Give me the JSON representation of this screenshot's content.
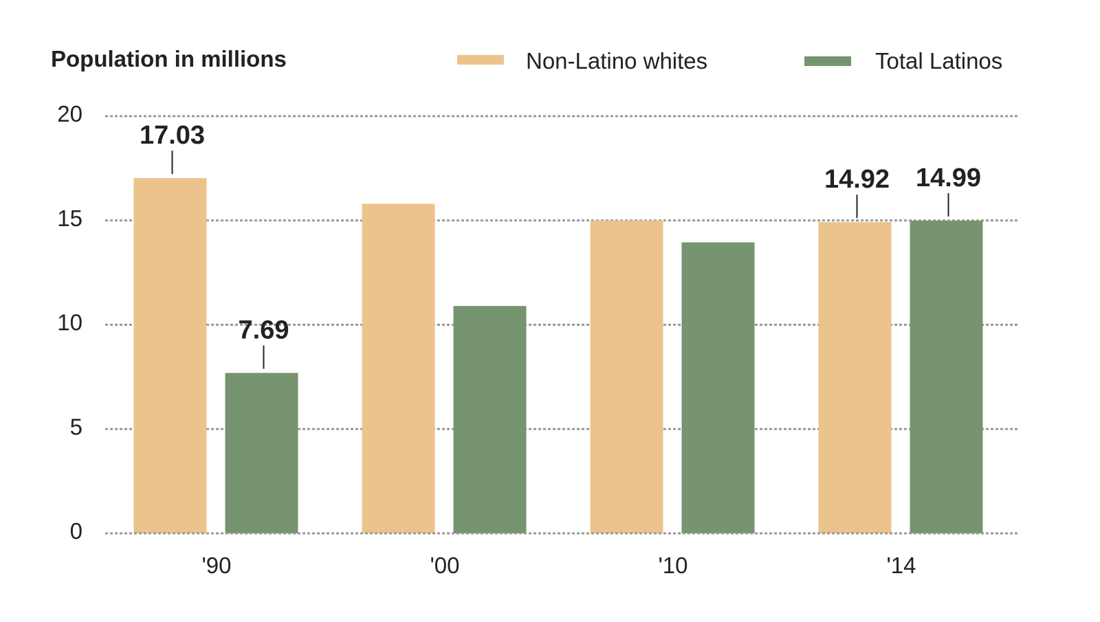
{
  "chart_data": {
    "type": "bar",
    "title": "Population in millions",
    "xlabel": "",
    "ylabel": "",
    "categories": [
      "'90",
      "'00",
      "'10",
      "'14"
    ],
    "series": [
      {
        "name": "Non-Latino whites",
        "color": "#EDC38D",
        "values": [
          17.03,
          15.8,
          15.0,
          14.92
        ],
        "labels": [
          "17.03",
          "",
          "",
          "14.92"
        ]
      },
      {
        "name": "Total Latinos",
        "color": "#76946F",
        "values": [
          7.69,
          10.9,
          13.95,
          14.99
        ],
        "labels": [
          "7.69",
          "",
          "",
          "14.99"
        ]
      }
    ],
    "ylim": [
      0,
      20
    ],
    "yticks": [
      "0",
      "5",
      "10",
      "15",
      "20"
    ],
    "grid": true,
    "legend": "top-right"
  }
}
